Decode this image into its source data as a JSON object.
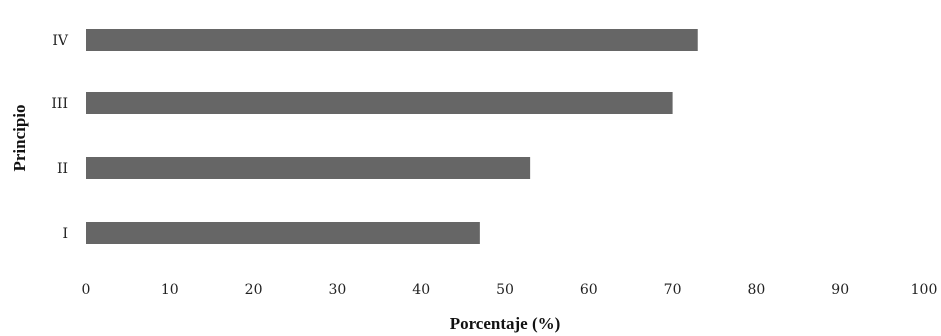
{
  "chart_data": {
    "type": "bar",
    "orientation": "horizontal",
    "categories": [
      "I",
      "II",
      "III",
      "IV"
    ],
    "values": [
      47,
      53,
      70,
      73
    ],
    "title": "",
    "xlabel": "Porcentaje (%)",
    "ylabel": "Principio",
    "xlim": [
      0,
      100
    ],
    "xticks": [
      "0",
      "10",
      "20",
      "30",
      "40",
      "50",
      "60",
      "70",
      "80",
      "90",
      "100"
    ],
    "grid": false,
    "bar_color": "#666666"
  }
}
